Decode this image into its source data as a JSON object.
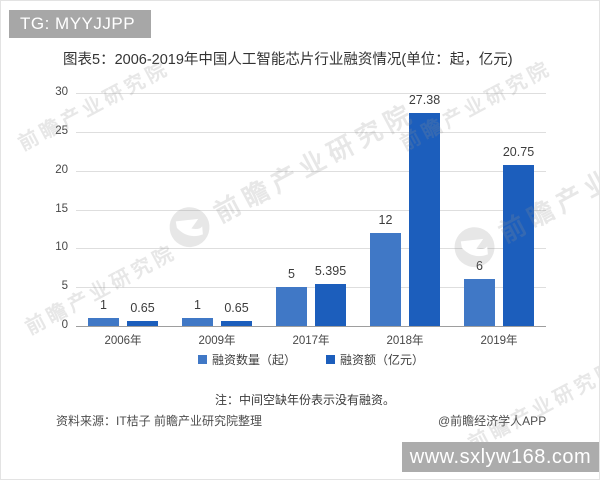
{
  "overlays": {
    "tg_badge": "TG: MYYJJPP",
    "site": "www.sxlyw168.com",
    "watermark_text": "前瞻产业研究院"
  },
  "chart_data": {
    "type": "bar",
    "title": "图表5：2006-2019年中国人工智能芯片行业融资情况(单位：起，亿元)",
    "categories": [
      "2006年",
      "2009年",
      "2017年",
      "2018年",
      "2019年"
    ],
    "series": [
      {
        "name": "融资数量（起）",
        "color": "#4078c6",
        "values": [
          1,
          1,
          5,
          12,
          6
        ]
      },
      {
        "name": "融资额（亿元）",
        "color": "#1c5ebc",
        "values": [
          0.65,
          0.65,
          5.395,
          27.38,
          20.75
        ]
      }
    ],
    "ylim": [
      0,
      30
    ],
    "ytick_step": 5,
    "grid": true,
    "legend_position": "bottom",
    "xlabel": "",
    "ylabel": ""
  },
  "footer": {
    "note": "注：中间空缺年份表示没有融资。",
    "source": "资料来源：IT桔子 前瞻产业研究院整理",
    "credit": "@前瞻经济学人APP"
  }
}
